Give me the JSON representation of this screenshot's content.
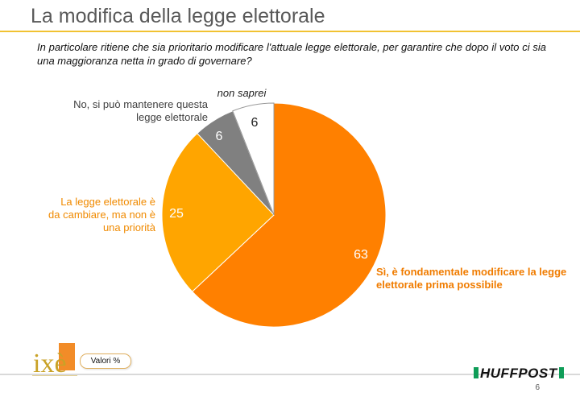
{
  "header": {
    "title": "La modifica della legge elettorale",
    "question": "In particolare ritiene che sia prioritario modificare l'attuale legge elettorale, per garantire che dopo il voto ci sia una maggioranza netta in grado di governare?"
  },
  "chart_data": {
    "type": "pie",
    "title": "",
    "start_angle_deg": 0,
    "direction": "clockwise",
    "slices": [
      {
        "label": "Sì, è fondamentale modificare la legge elettorale prima possibile",
        "value": 63,
        "color": "#ff8000"
      },
      {
        "label": "La legge elettorale è da cambiare, ma non è una priorità",
        "value": 25,
        "color": "#ffa500"
      },
      {
        "label": "No, si può mantenere questa legge elettorale",
        "value": 6,
        "color": "#808080"
      },
      {
        "label": "non saprei",
        "value": 6,
        "color": "#ffffff"
      }
    ],
    "value_labels": [
      "63",
      "25",
      "6",
      "6"
    ],
    "stroke_color": "#e07000"
  },
  "labels": {
    "si": "Sì, è fondamentale modificare la legge elettorale prima possibile",
    "cambiare": "La legge elettorale è da cambiare, ma non è una priorità",
    "no": "No, si può mantenere questa legge elettorale",
    "non_saprei": "non saprei"
  },
  "footer": {
    "logo_text": "ixè",
    "valori": "Valori %",
    "brand": "HUFFPOST",
    "page_number": "6"
  },
  "colors": {
    "title_rule": "#f1c232",
    "brand_green": "#0f9d58"
  }
}
